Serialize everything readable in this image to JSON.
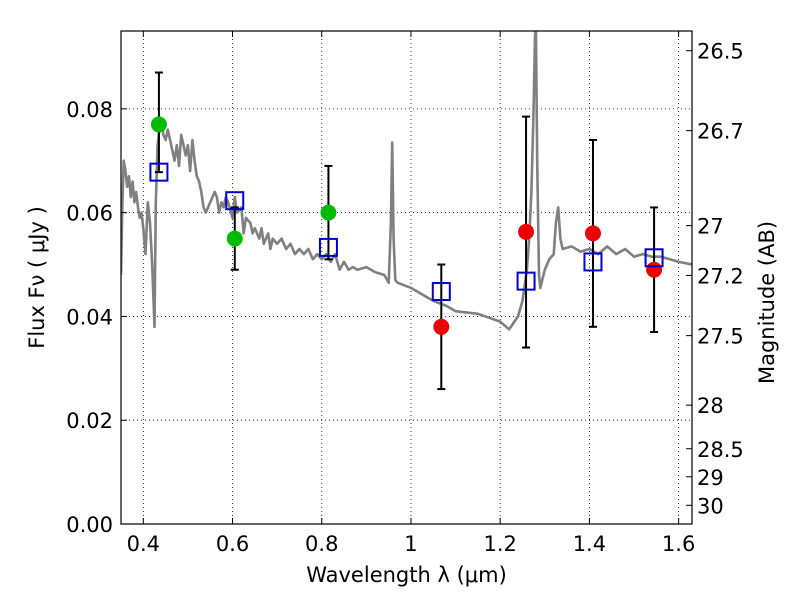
{
  "chart_data": {
    "type": "scatter",
    "xlabel": "Wavelength  λ (μm)",
    "ylabel": "Flux  Fν  ( μJy )",
    "y2label": "Magnitude (AB)",
    "xlim": [
      0.35,
      1.63
    ],
    "ylim": [
      0.0,
      0.095
    ],
    "grid": true,
    "x_ticks": [
      0.4,
      0.6,
      0.8,
      1.0,
      1.2,
      1.4,
      1.6
    ],
    "x_tick_labels": [
      "0.4",
      "0.6",
      "0.8",
      "1",
      "1.2",
      "1.4",
      "1.6"
    ],
    "y_ticks": [
      0.0,
      0.02,
      0.04,
      0.06,
      0.08
    ],
    "y_tick_labels": [
      "0.00",
      "0.02",
      "0.04",
      "0.06",
      "0.08"
    ],
    "mag_tick_labels": [
      "26.5",
      "26.7",
      "27",
      "27.2",
      "27.5",
      "28",
      "28.5",
      "29",
      "30"
    ],
    "mag_tick_flux": [
      0.0912,
      0.0758,
      0.0575,
      0.0479,
      0.0363,
      0.0229,
      0.0145,
      0.0091,
      0.0036
    ],
    "colors": {
      "model": "#808080",
      "optical": "#00bb00",
      "infrared": "#ee0000",
      "model_points": "#0000cc",
      "errorbar": "#000000"
    },
    "series": [
      {
        "name": "model spectrum",
        "style": "line",
        "x": [
          0.35,
          0.353,
          0.356,
          0.36,
          0.364,
          0.368,
          0.372,
          0.376,
          0.38,
          0.384,
          0.388,
          0.392,
          0.396,
          0.4,
          0.405,
          0.41,
          0.415,
          0.42,
          0.425,
          0.428,
          0.432,
          0.436,
          0.44,
          0.445,
          0.45,
          0.455,
          0.46,
          0.465,
          0.47,
          0.475,
          0.48,
          0.485,
          0.49,
          0.495,
          0.5,
          0.505,
          0.51,
          0.515,
          0.52,
          0.525,
          0.53,
          0.535,
          0.54,
          0.545,
          0.55,
          0.56,
          0.565,
          0.57,
          0.575,
          0.58,
          0.585,
          0.59,
          0.6,
          0.605,
          0.61,
          0.62,
          0.625,
          0.63,
          0.64,
          0.645,
          0.65,
          0.66,
          0.665,
          0.67,
          0.68,
          0.685,
          0.69,
          0.7,
          0.71,
          0.72,
          0.73,
          0.74,
          0.75,
          0.76,
          0.77,
          0.78,
          0.79,
          0.8,
          0.81,
          0.82,
          0.83,
          0.84,
          0.85,
          0.86,
          0.87,
          0.88,
          0.9,
          0.92,
          0.94,
          0.95,
          0.955,
          0.958,
          0.961,
          0.965,
          0.97,
          1.0,
          1.02,
          1.05,
          1.08,
          1.1,
          1.15,
          1.2,
          1.22,
          1.24,
          1.25,
          1.255,
          1.26,
          1.265,
          1.27,
          1.275,
          1.278,
          1.28,
          1.283,
          1.287,
          1.29,
          1.3,
          1.31,
          1.32,
          1.325,
          1.33,
          1.335,
          1.34,
          1.36,
          1.38,
          1.4,
          1.42,
          1.44,
          1.46,
          1.48,
          1.5,
          1.52,
          1.54,
          1.56,
          1.58,
          1.6,
          1.63
        ],
        "y": [
          0.048,
          0.061,
          0.07,
          0.068,
          0.065,
          0.067,
          0.063,
          0.066,
          0.062,
          0.064,
          0.061,
          0.059,
          0.06,
          0.057,
          0.052,
          0.062,
          0.058,
          0.05,
          0.038,
          0.062,
          0.073,
          0.076,
          0.078,
          0.075,
          0.074,
          0.076,
          0.074,
          0.072,
          0.07,
          0.073,
          0.069,
          0.075,
          0.073,
          0.071,
          0.073,
          0.068,
          0.074,
          0.07,
          0.067,
          0.066,
          0.064,
          0.061,
          0.06,
          0.061,
          0.062,
          0.064,
          0.063,
          0.06,
          0.062,
          0.061,
          0.063,
          0.062,
          0.059,
          0.063,
          0.06,
          0.061,
          0.056,
          0.059,
          0.058,
          0.056,
          0.057,
          0.055,
          0.057,
          0.054,
          0.056,
          0.053,
          0.055,
          0.054,
          0.055,
          0.053,
          0.054,
          0.052,
          0.053,
          0.052,
          0.053,
          0.051,
          0.052,
          0.051,
          0.052,
          0.0505,
          0.052,
          0.049,
          0.0505,
          0.049,
          0.0495,
          0.049,
          0.0495,
          0.0485,
          0.048,
          0.0465,
          0.058,
          0.0735,
          0.055,
          0.047,
          0.0465,
          0.0455,
          0.0445,
          0.043,
          0.042,
          0.041,
          0.0405,
          0.039,
          0.0375,
          0.04,
          0.043,
          0.046,
          0.049,
          0.055,
          0.064,
          0.08,
          0.094,
          0.096,
          0.07,
          0.048,
          0.0455,
          0.049,
          0.051,
          0.052,
          0.058,
          0.061,
          0.055,
          0.053,
          0.0535,
          0.0525,
          0.053,
          0.052,
          0.0535,
          0.052,
          0.053,
          0.0515,
          0.052,
          0.0515,
          0.0515,
          0.051,
          0.0505,
          0.05
        ]
      },
      {
        "name": "optical photometry",
        "style": "circle",
        "x": [
          0.435,
          0.605,
          0.815
        ],
        "y": [
          0.077,
          0.055,
          0.06
        ],
        "yerr_low": [
          null,
          null,
          null
        ],
        "yerr_high": [
          null,
          null,
          null
        ]
      },
      {
        "name": "infrared photometry",
        "style": "circle",
        "x": [
          1.068,
          1.258,
          1.408,
          1.545
        ],
        "y": [
          0.038,
          0.0563,
          0.056,
          0.049
        ]
      },
      {
        "name": "model photometry",
        "style": "square",
        "x": [
          0.435,
          0.605,
          0.815,
          1.068,
          1.258,
          1.408,
          1.545
        ],
        "y": [
          0.0678,
          0.0623,
          0.0533,
          0.0448,
          0.0468,
          0.0505,
          0.0513
        ]
      }
    ],
    "error_bars": [
      {
        "x": 0.435,
        "low": 0.0678,
        "high": 0.087
      },
      {
        "x": 0.605,
        "low": 0.049,
        "high": 0.061
      },
      {
        "x": 0.815,
        "low": 0.051,
        "high": 0.069
      },
      {
        "x": 1.068,
        "low": 0.026,
        "high": 0.05
      },
      {
        "x": 1.258,
        "low": 0.034,
        "high": 0.0785
      },
      {
        "x": 1.408,
        "low": 0.038,
        "high": 0.074
      },
      {
        "x": 1.545,
        "low": 0.037,
        "high": 0.061
      }
    ]
  }
}
